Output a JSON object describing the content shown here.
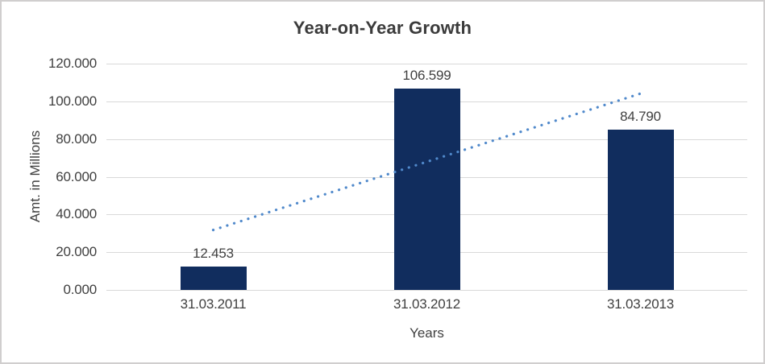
{
  "chart_data": {
    "type": "bar",
    "title": "Year-on-Year Growth",
    "xlabel": "Years",
    "ylabel": "Amt. in Millions",
    "categories": [
      "31.03.2011",
      "31.03.2012",
      "31.03.2013"
    ],
    "values": [
      12.453,
      106.599,
      84.79
    ],
    "data_labels": [
      "12.453",
      "106.599",
      "84.790"
    ],
    "yticks_top_to_bottom": [
      "120.000",
      "100.000",
      "80.000",
      "60.000",
      "40.000",
      "20.000",
      "0.000"
    ],
    "ylim": [
      0,
      120
    ],
    "grid": true,
    "legend": "none",
    "trendline": {
      "type": "linear",
      "style": "dotted"
    },
    "colors": {
      "bar": "#112d5e",
      "trendline": "#5089cb",
      "gridline": "#d9d9d9",
      "text": "#404040",
      "title_text": "#3b3b3b",
      "border": "#d0cece",
      "background": "#ffffff"
    }
  }
}
